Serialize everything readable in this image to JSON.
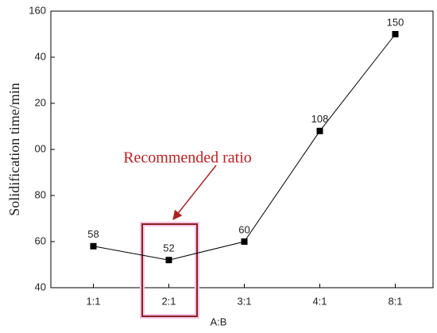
{
  "chart_data": {
    "type": "line",
    "x_label": "A:B",
    "y_label": "Solidification time/min",
    "annotation": "Recommended ratio",
    "categories": [
      "1:1",
      "2:1",
      "3:1",
      "4:1",
      "8:1"
    ],
    "series": [
      {
        "color": "#000000",
        "values": [
          58,
          52,
          60,
          108,
          150
        ]
      }
    ],
    "ylim": [
      40,
      160
    ],
    "yticks": [
      40,
      60,
      80,
      {
        "value": 100,
        "label": "00"
      },
      {
        "value": 120,
        "label": "20"
      },
      {
        "value": 140,
        "label": "40"
      },
      160
    ]
  }
}
